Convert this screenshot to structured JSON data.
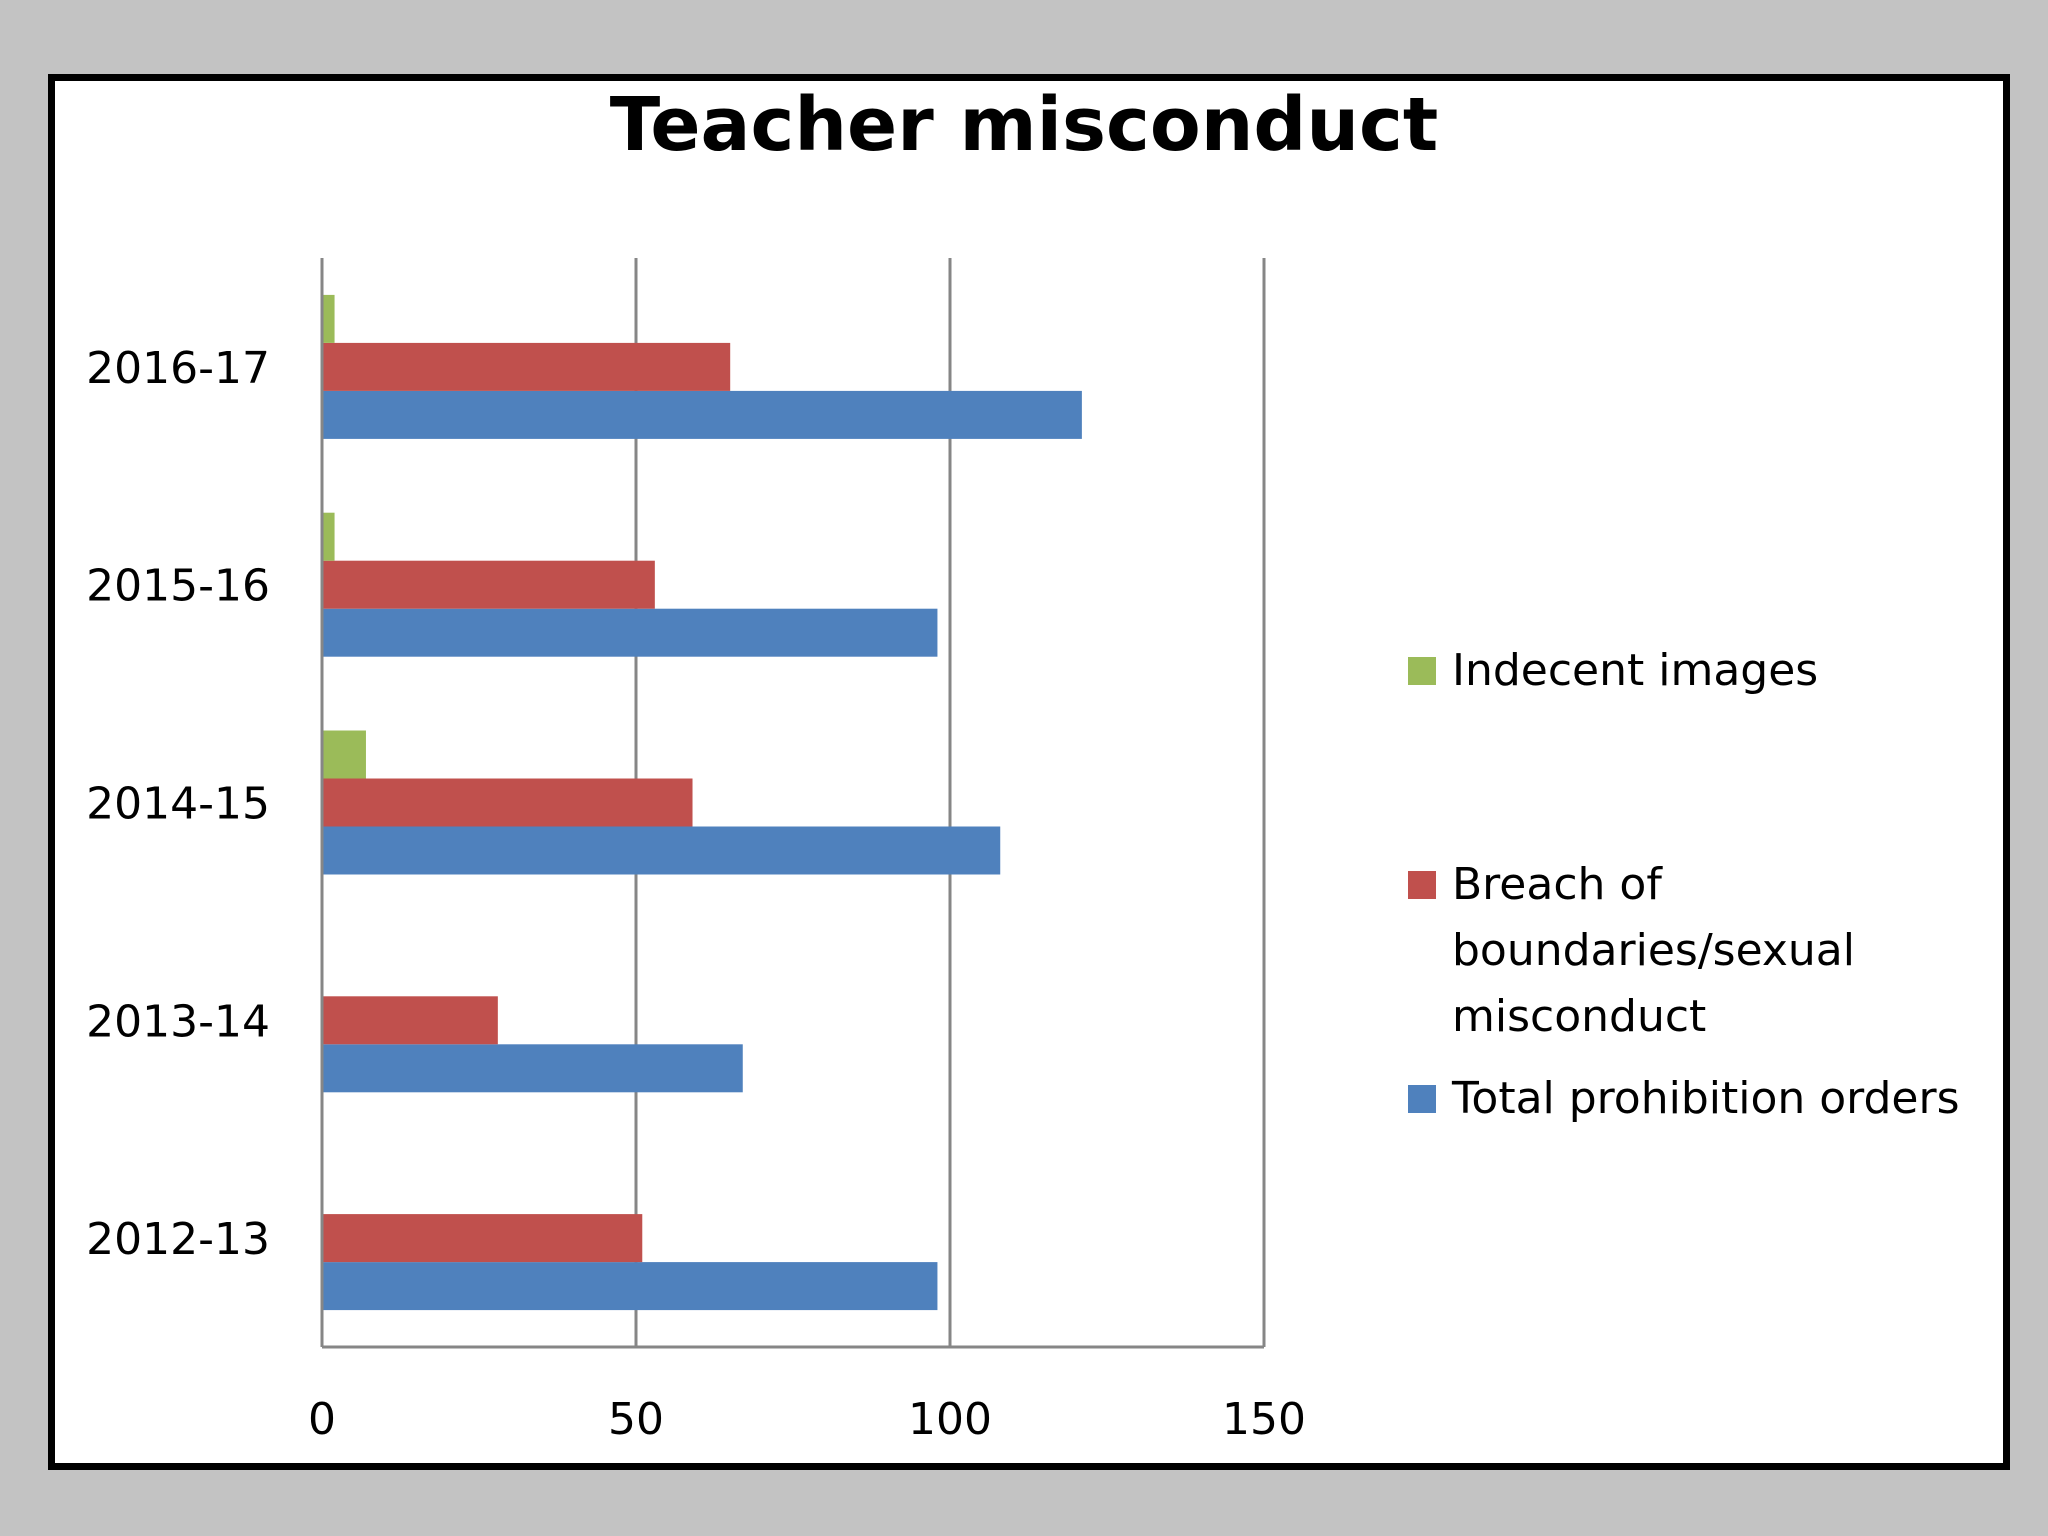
{
  "chart_data": {
    "type": "bar",
    "orientation": "horizontal",
    "title": "Teacher misconduct",
    "xlabel": "",
    "ylabel": "",
    "categories": [
      "2012-13",
      "2013-14",
      "2014-15",
      "2015-16",
      "2016-17"
    ],
    "x_ticks": [
      "0",
      "50",
      "100",
      "150"
    ],
    "xlim": [
      0,
      150
    ],
    "grid": "vertical",
    "legend_position": "right",
    "series": [
      {
        "name": "Total prohibition orders",
        "color": "#4f81bd",
        "values": [
          98,
          67,
          108,
          98,
          121
        ]
      },
      {
        "name": "Breach of boundaries/sexual misconduct",
        "color": "#c0504d",
        "values": [
          51,
          28,
          59,
          53,
          65
        ]
      },
      {
        "name": "Indecent images",
        "color": "#9bbb59",
        "values": [
          0,
          0,
          7,
          2,
          2
        ]
      }
    ],
    "legend": [
      {
        "lines": [
          "Indecent images"
        ],
        "color": "#9bbb59"
      },
      {
        "lines": [
          "Breach of",
          "boundaries/sexual",
          "misconduct"
        ],
        "color": "#c0504d"
      },
      {
        "lines": [
          "Total prohibition orders"
        ],
        "color": "#4f81bd"
      }
    ]
  }
}
